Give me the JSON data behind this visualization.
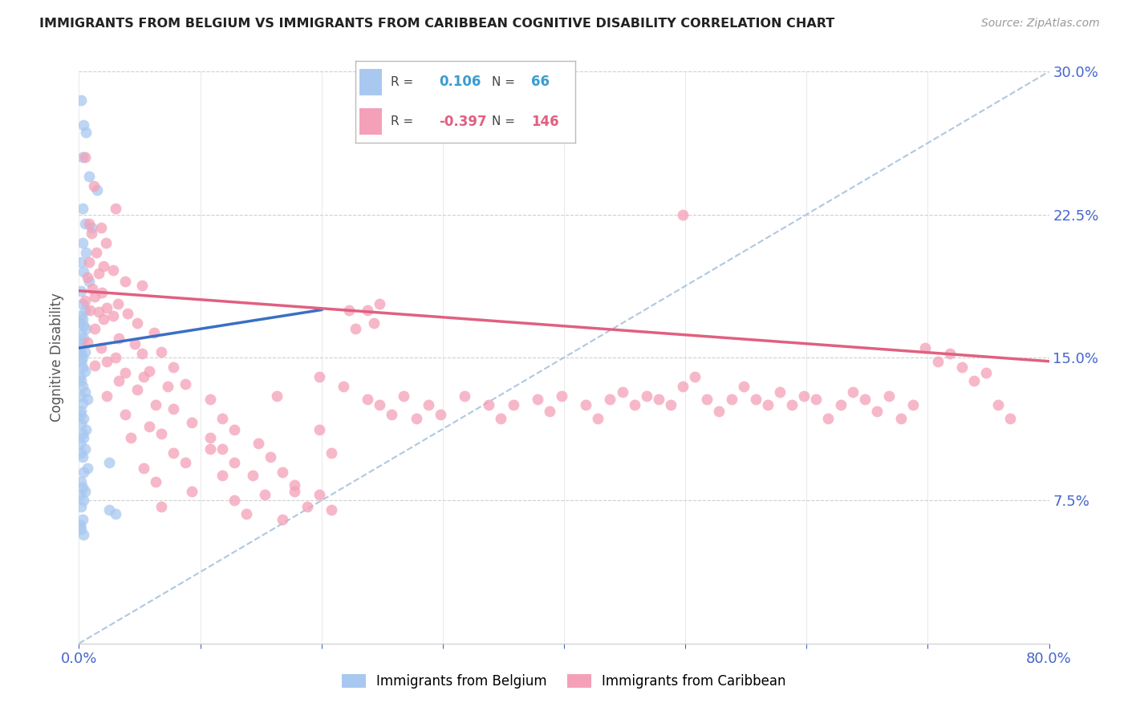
{
  "title": "IMMIGRANTS FROM BELGIUM VS IMMIGRANTS FROM CARIBBEAN COGNITIVE DISABILITY CORRELATION CHART",
  "source": "Source: ZipAtlas.com",
  "ylabel_label": "Cognitive Disability",
  "x_min": 0.0,
  "x_max": 0.8,
  "y_min": 0.0,
  "y_max": 0.3,
  "x_ticks": [
    0.0,
    0.1,
    0.2,
    0.3,
    0.4,
    0.5,
    0.6,
    0.7,
    0.8
  ],
  "y_ticks": [
    0.0,
    0.075,
    0.15,
    0.225,
    0.3
  ],
  "y_tick_labels_right": [
    "",
    "7.5%",
    "15.0%",
    "22.5%",
    "30.0%"
  ],
  "belgium_color": "#a8c8f0",
  "caribbean_color": "#f4a0b8",
  "belgium_line_color": "#3a6fc4",
  "caribbean_line_color": "#e06080",
  "dashed_line_color": "#b0c8e0",
  "legend_R_belgium": "0.106",
  "legend_N_belgium": "66",
  "legend_R_caribbean": "-0.397",
  "legend_N_caribbean": "146",
  "bel_line_x0": 0.0,
  "bel_line_y0": 0.155,
  "bel_line_x1": 0.2,
  "bel_line_y1": 0.175,
  "car_line_x0": 0.0,
  "car_line_y0": 0.185,
  "car_line_x1": 0.8,
  "car_line_y1": 0.148,
  "belgium_scatter": [
    [
      0.002,
      0.285
    ],
    [
      0.004,
      0.272
    ],
    [
      0.006,
      0.268
    ],
    [
      0.003,
      0.255
    ],
    [
      0.008,
      0.245
    ],
    [
      0.015,
      0.238
    ],
    [
      0.003,
      0.228
    ],
    [
      0.005,
      0.22
    ],
    [
      0.01,
      0.218
    ],
    [
      0.003,
      0.21
    ],
    [
      0.006,
      0.205
    ],
    [
      0.002,
      0.2
    ],
    [
      0.004,
      0.195
    ],
    [
      0.008,
      0.19
    ],
    [
      0.002,
      0.185
    ],
    [
      0.003,
      0.178
    ],
    [
      0.005,
      0.175
    ],
    [
      0.002,
      0.172
    ],
    [
      0.003,
      0.17
    ],
    [
      0.001,
      0.168
    ],
    [
      0.004,
      0.167
    ],
    [
      0.006,
      0.165
    ],
    [
      0.002,
      0.162
    ],
    [
      0.004,
      0.16
    ],
    [
      0.002,
      0.157
    ],
    [
      0.001,
      0.155
    ],
    [
      0.005,
      0.153
    ],
    [
      0.002,
      0.152
    ],
    [
      0.003,
      0.15
    ],
    [
      0.002,
      0.148
    ],
    [
      0.003,
      0.145
    ],
    [
      0.005,
      0.143
    ],
    [
      0.001,
      0.14
    ],
    [
      0.002,
      0.138
    ],
    [
      0.003,
      0.135
    ],
    [
      0.005,
      0.132
    ],
    [
      0.002,
      0.13
    ],
    [
      0.007,
      0.128
    ],
    [
      0.003,
      0.126
    ],
    [
      0.002,
      0.122
    ],
    [
      0.001,
      0.12
    ],
    [
      0.004,
      0.118
    ],
    [
      0.002,
      0.115
    ],
    [
      0.006,
      0.112
    ],
    [
      0.003,
      0.11
    ],
    [
      0.004,
      0.108
    ],
    [
      0.001,
      0.105
    ],
    [
      0.005,
      0.102
    ],
    [
      0.002,
      0.1
    ],
    [
      0.003,
      0.098
    ],
    [
      0.025,
      0.095
    ],
    [
      0.007,
      0.092
    ],
    [
      0.004,
      0.09
    ],
    [
      0.002,
      0.085
    ],
    [
      0.003,
      0.082
    ],
    [
      0.005,
      0.08
    ],
    [
      0.001,
      0.078
    ],
    [
      0.004,
      0.075
    ],
    [
      0.002,
      0.072
    ],
    [
      0.025,
      0.07
    ],
    [
      0.03,
      0.068
    ],
    [
      0.003,
      0.065
    ],
    [
      0.001,
      0.062
    ],
    [
      0.002,
      0.06
    ],
    [
      0.004,
      0.057
    ]
  ],
  "caribbean_scatter": [
    [
      0.005,
      0.255
    ],
    [
      0.012,
      0.24
    ],
    [
      0.03,
      0.228
    ],
    [
      0.008,
      0.22
    ],
    [
      0.018,
      0.218
    ],
    [
      0.01,
      0.215
    ],
    [
      0.022,
      0.21
    ],
    [
      0.014,
      0.205
    ],
    [
      0.008,
      0.2
    ],
    [
      0.02,
      0.198
    ],
    [
      0.028,
      0.196
    ],
    [
      0.016,
      0.194
    ],
    [
      0.007,
      0.192
    ],
    [
      0.038,
      0.19
    ],
    [
      0.052,
      0.188
    ],
    [
      0.011,
      0.186
    ],
    [
      0.019,
      0.184
    ],
    [
      0.013,
      0.182
    ],
    [
      0.005,
      0.18
    ],
    [
      0.032,
      0.178
    ],
    [
      0.023,
      0.176
    ],
    [
      0.009,
      0.175
    ],
    [
      0.016,
      0.174
    ],
    [
      0.04,
      0.173
    ],
    [
      0.028,
      0.172
    ],
    [
      0.02,
      0.17
    ],
    [
      0.048,
      0.168
    ],
    [
      0.013,
      0.165
    ],
    [
      0.062,
      0.163
    ],
    [
      0.033,
      0.16
    ],
    [
      0.007,
      0.158
    ],
    [
      0.046,
      0.157
    ],
    [
      0.018,
      0.155
    ],
    [
      0.068,
      0.153
    ],
    [
      0.052,
      0.152
    ],
    [
      0.03,
      0.15
    ],
    [
      0.023,
      0.148
    ],
    [
      0.013,
      0.146
    ],
    [
      0.078,
      0.145
    ],
    [
      0.058,
      0.143
    ],
    [
      0.038,
      0.142
    ],
    [
      0.053,
      0.14
    ],
    [
      0.033,
      0.138
    ],
    [
      0.088,
      0.136
    ],
    [
      0.073,
      0.135
    ],
    [
      0.048,
      0.133
    ],
    [
      0.023,
      0.13
    ],
    [
      0.108,
      0.128
    ],
    [
      0.063,
      0.125
    ],
    [
      0.078,
      0.123
    ],
    [
      0.038,
      0.12
    ],
    [
      0.118,
      0.118
    ],
    [
      0.093,
      0.116
    ],
    [
      0.058,
      0.114
    ],
    [
      0.128,
      0.112
    ],
    [
      0.068,
      0.11
    ],
    [
      0.043,
      0.108
    ],
    [
      0.148,
      0.105
    ],
    [
      0.108,
      0.102
    ],
    [
      0.078,
      0.1
    ],
    [
      0.158,
      0.098
    ],
    [
      0.088,
      0.095
    ],
    [
      0.053,
      0.092
    ],
    [
      0.168,
      0.09
    ],
    [
      0.118,
      0.088
    ],
    [
      0.063,
      0.085
    ],
    [
      0.178,
      0.083
    ],
    [
      0.093,
      0.08
    ],
    [
      0.198,
      0.078
    ],
    [
      0.128,
      0.075
    ],
    [
      0.068,
      0.072
    ],
    [
      0.208,
      0.07
    ],
    [
      0.138,
      0.068
    ],
    [
      0.163,
      0.13
    ],
    [
      0.198,
      0.14
    ],
    [
      0.218,
      0.135
    ],
    [
      0.238,
      0.128
    ],
    [
      0.248,
      0.125
    ],
    [
      0.258,
      0.12
    ],
    [
      0.268,
      0.13
    ],
    [
      0.278,
      0.118
    ],
    [
      0.288,
      0.125
    ],
    [
      0.298,
      0.12
    ],
    [
      0.318,
      0.13
    ],
    [
      0.338,
      0.125
    ],
    [
      0.348,
      0.118
    ],
    [
      0.358,
      0.125
    ],
    [
      0.378,
      0.128
    ],
    [
      0.388,
      0.122
    ],
    [
      0.398,
      0.13
    ],
    [
      0.418,
      0.125
    ],
    [
      0.428,
      0.118
    ],
    [
      0.438,
      0.128
    ],
    [
      0.448,
      0.132
    ],
    [
      0.458,
      0.125
    ],
    [
      0.468,
      0.13
    ],
    [
      0.478,
      0.128
    ],
    [
      0.488,
      0.125
    ],
    [
      0.498,
      0.135
    ],
    [
      0.508,
      0.14
    ],
    [
      0.518,
      0.128
    ],
    [
      0.528,
      0.122
    ],
    [
      0.538,
      0.128
    ],
    [
      0.548,
      0.135
    ],
    [
      0.558,
      0.128
    ],
    [
      0.568,
      0.125
    ],
    [
      0.578,
      0.132
    ],
    [
      0.588,
      0.125
    ],
    [
      0.598,
      0.13
    ],
    [
      0.608,
      0.128
    ],
    [
      0.618,
      0.118
    ],
    [
      0.628,
      0.125
    ],
    [
      0.638,
      0.132
    ],
    [
      0.648,
      0.128
    ],
    [
      0.658,
      0.122
    ],
    [
      0.668,
      0.13
    ],
    [
      0.678,
      0.118
    ],
    [
      0.688,
      0.125
    ],
    [
      0.698,
      0.155
    ],
    [
      0.708,
      0.148
    ],
    [
      0.718,
      0.152
    ],
    [
      0.728,
      0.145
    ],
    [
      0.738,
      0.138
    ],
    [
      0.748,
      0.142
    ],
    [
      0.758,
      0.125
    ],
    [
      0.768,
      0.118
    ],
    [
      0.108,
      0.108
    ],
    [
      0.118,
      0.102
    ],
    [
      0.128,
      0.095
    ],
    [
      0.143,
      0.088
    ],
    [
      0.153,
      0.078
    ],
    [
      0.168,
      0.065
    ],
    [
      0.178,
      0.08
    ],
    [
      0.188,
      0.072
    ],
    [
      0.198,
      0.112
    ],
    [
      0.208,
      0.1
    ],
    [
      0.223,
      0.175
    ],
    [
      0.228,
      0.165
    ],
    [
      0.238,
      0.175
    ],
    [
      0.243,
      0.168
    ],
    [
      0.248,
      0.178
    ],
    [
      0.498,
      0.225
    ]
  ]
}
